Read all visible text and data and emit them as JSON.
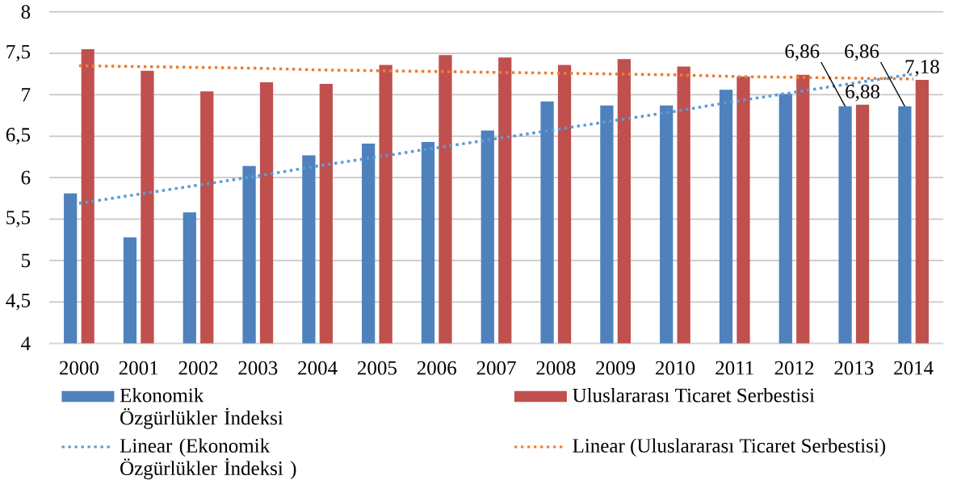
{
  "chart_data": {
    "type": "bar",
    "categories": [
      "2000",
      "2001",
      "2002",
      "2003",
      "2004",
      "2005",
      "2006",
      "2007",
      "2008",
      "2009",
      "2010",
      "2011",
      "2012",
      "2013",
      "2014"
    ],
    "series": [
      {
        "name": "Ekonomik Özgürlükler İndeksi",
        "color": "#4f81bd",
        "values": [
          5.81,
          5.28,
          5.58,
          6.14,
          6.27,
          6.41,
          6.43,
          6.57,
          6.92,
          6.87,
          6.87,
          7.06,
          7.01,
          6.86,
          6.86
        ],
        "value_labels": [
          null,
          null,
          null,
          null,
          null,
          null,
          null,
          null,
          null,
          null,
          null,
          null,
          null,
          "6,86",
          "6,86"
        ]
      },
      {
        "name": "Uluslararası Ticaret Serbestisi",
        "color": "#c0504d",
        "values": [
          7.55,
          7.29,
          7.04,
          7.15,
          7.13,
          7.36,
          7.48,
          7.45,
          7.36,
          7.43,
          7.34,
          7.22,
          7.24,
          6.88,
          7.18
        ],
        "value_labels": [
          null,
          null,
          null,
          null,
          null,
          null,
          null,
          null,
          null,
          null,
          null,
          null,
          null,
          "6,88",
          "7,18"
        ]
      },
      {
        "name": "Linear (Ekonomik Özgürlükler İndeksi )",
        "type": "line",
        "color": "#5b9bd5",
        "line_style": "dotted",
        "values": [
          5.69,
          5.8,
          5.91,
          6.02,
          6.14,
          6.25,
          6.36,
          6.47,
          6.58,
          6.69,
          6.8,
          6.92,
          7.03,
          7.14,
          7.25
        ]
      },
      {
        "name": "Linear (Uluslararası Ticaret Serbestisi)",
        "type": "line",
        "color": "#ed7d31",
        "line_style": "dotted",
        "values": [
          7.35,
          7.34,
          7.33,
          7.32,
          7.3,
          7.29,
          7.28,
          7.27,
          7.26,
          7.25,
          7.24,
          7.22,
          7.21,
          7.2,
          7.19
        ]
      }
    ],
    "ylim": [
      4,
      8
    ],
    "yticks": [
      4,
      {
        "value": 4.5,
        "label": "4,5"
      },
      5,
      {
        "value": 5.5,
        "label": "5,5"
      },
      6,
      {
        "value": 6.5,
        "label": "6,5"
      },
      7,
      {
        "value": 7.5,
        "label": "7,5"
      },
      8
    ],
    "grid": "y",
    "legend": "bottom"
  }
}
